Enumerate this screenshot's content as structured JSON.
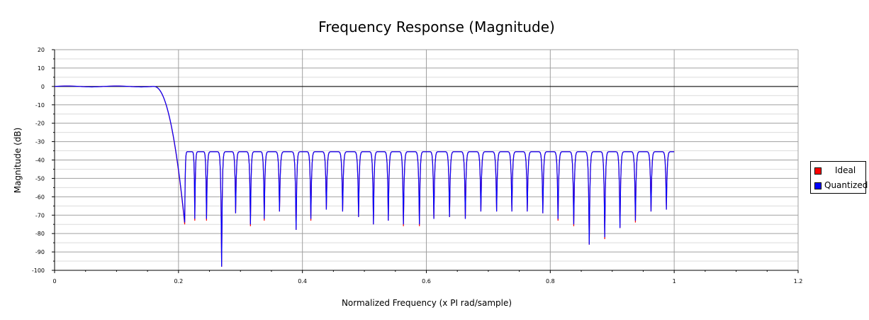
{
  "chart_data": {
    "type": "line",
    "title": "Frequency Response (Magnitude)",
    "xlabel": "Normalized Frequency (x PI rad/sample)",
    "ylabel": "Magnitude (dB)",
    "xlim": [
      0,
      1.2
    ],
    "ylim": [
      -100,
      20
    ],
    "x_ticks": [
      "0",
      "0.2",
      "0.4",
      "0.6",
      "0.8",
      "1",
      "1.2"
    ],
    "y_ticks": [
      "20",
      "10",
      "0",
      "-10",
      "-20",
      "-30",
      "-40",
      "-50",
      "-60",
      "-70",
      "-80",
      "-90",
      "-100"
    ],
    "grid": true,
    "legend": "right",
    "series": [
      {
        "name": "Ideal",
        "color": "#ff0000",
        "passband": {
          "x": [
            0,
            0.16
          ],
          "y": 0
        },
        "transition": {
          "x": [
            0.16,
            0.21
          ],
          "y": [
            0,
            -75
          ]
        },
        "stopband_sidelobe_peak": -35.5,
        "nulls": [
          {
            "x": 0.21,
            "y": -75
          },
          {
            "x": 0.2263,
            "y": -73
          },
          {
            "x": 0.2452,
            "y": -73
          },
          {
            "x": 0.2696,
            "y": -98
          },
          {
            "x": 0.2922,
            "y": -69
          },
          {
            "x": 0.3161,
            "y": -76
          },
          {
            "x": 0.3384,
            "y": -73
          },
          {
            "x": 0.363,
            "y": -68
          },
          {
            "x": 0.3898,
            "y": -78
          },
          {
            "x": 0.4136,
            "y": -73
          },
          {
            "x": 0.4386,
            "y": -67
          },
          {
            "x": 0.4649,
            "y": -68
          },
          {
            "x": 0.4906,
            "y": -71
          },
          {
            "x": 0.5146,
            "y": -75
          },
          {
            "x": 0.5386,
            "y": -73
          },
          {
            "x": 0.563,
            "y": -76
          },
          {
            "x": 0.5888,
            "y": -76
          },
          {
            "x": 0.6121,
            "y": -72
          },
          {
            "x": 0.6374,
            "y": -71
          },
          {
            "x": 0.6629,
            "y": -72
          },
          {
            "x": 0.688,
            "y": -68
          },
          {
            "x": 0.7134,
            "y": -68
          },
          {
            "x": 0.738,
            "y": -68
          },
          {
            "x": 0.7629,
            "y": -68
          },
          {
            "x": 0.788,
            "y": -69
          },
          {
            "x": 0.8125,
            "y": -73
          },
          {
            "x": 0.8379,
            "y": -76
          },
          {
            "x": 0.8629,
            "y": -86
          },
          {
            "x": 0.8879,
            "y": -83
          },
          {
            "x": 0.9125,
            "y": -77
          },
          {
            "x": 0.9374,
            "y": -74
          },
          {
            "x": 0.9626,
            "y": -68
          },
          {
            "x": 0.9874,
            "y": -67
          }
        ],
        "end": {
          "x": 1.0,
          "y": -35.5
        }
      },
      {
        "name": "Quantized",
        "color": "#0000ff",
        "passband": {
          "x": [
            0,
            0.16
          ],
          "y": 0
        },
        "transition": {
          "x": [
            0.16,
            0.21
          ],
          "y": [
            0,
            -74
          ]
        },
        "stopband_sidelobe_peak": -35.5,
        "nulls": [
          {
            "x": 0.21,
            "y": -74
          },
          {
            "x": 0.2263,
            "y": -72
          },
          {
            "x": 0.2452,
            "y": -72
          },
          {
            "x": 0.2696,
            "y": -98
          },
          {
            "x": 0.2922,
            "y": -69
          },
          {
            "x": 0.3161,
            "y": -75
          },
          {
            "x": 0.3384,
            "y": -72
          },
          {
            "x": 0.363,
            "y": -68
          },
          {
            "x": 0.3898,
            "y": -78
          },
          {
            "x": 0.4136,
            "y": -72
          },
          {
            "x": 0.4386,
            "y": -67
          },
          {
            "x": 0.4649,
            "y": -68
          },
          {
            "x": 0.4906,
            "y": -71
          },
          {
            "x": 0.5146,
            "y": -75
          },
          {
            "x": 0.5386,
            "y": -73
          },
          {
            "x": 0.563,
            "y": -75
          },
          {
            "x": 0.5888,
            "y": -75
          },
          {
            "x": 0.6121,
            "y": -72
          },
          {
            "x": 0.6374,
            "y": -71
          },
          {
            "x": 0.6629,
            "y": -72
          },
          {
            "x": 0.688,
            "y": -68
          },
          {
            "x": 0.7134,
            "y": -68
          },
          {
            "x": 0.738,
            "y": -68
          },
          {
            "x": 0.7629,
            "y": -68
          },
          {
            "x": 0.788,
            "y": -69
          },
          {
            "x": 0.8125,
            "y": -72
          },
          {
            "x": 0.8379,
            "y": -75
          },
          {
            "x": 0.8629,
            "y": -86
          },
          {
            "x": 0.8879,
            "y": -82
          },
          {
            "x": 0.9125,
            "y": -77
          },
          {
            "x": 0.9374,
            "y": -73
          },
          {
            "x": 0.9626,
            "y": -68
          },
          {
            "x": 0.9874,
            "y": -67
          }
        ],
        "end": {
          "x": 1.0,
          "y": -35.5
        }
      }
    ]
  },
  "legend_items": [
    {
      "label": "Ideal",
      "color": "#ff0000"
    },
    {
      "label": "Quantized",
      "color": "#0000ff"
    }
  ]
}
